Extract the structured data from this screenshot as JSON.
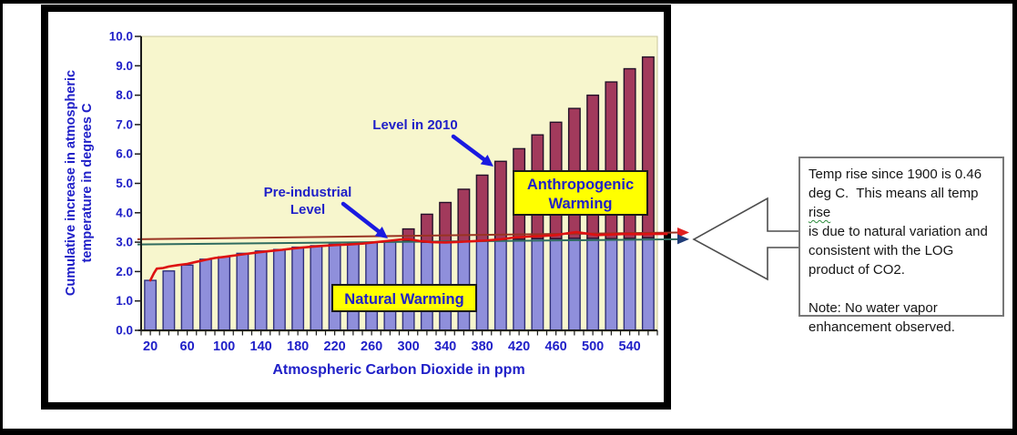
{
  "chart_data": {
    "type": "bar",
    "title": "",
    "xlabel": "Atmospheric Carbon Dioxide in ppm",
    "ylabel_lines": [
      "Cumulative increase in atmospheric",
      "temperature in degrees C"
    ],
    "ylim": [
      0,
      10
    ],
    "ytick_labels": [
      "0.0",
      "1.0",
      "2.0",
      "3.0",
      "4.0",
      "5.0",
      "6.0",
      "7.0",
      "8.0",
      "9.0",
      "10.0"
    ],
    "xtick_labels": [
      "20",
      "60",
      "100",
      "140",
      "180",
      "220",
      "260",
      "300",
      "340",
      "380",
      "420",
      "460",
      "500",
      "540"
    ],
    "categories_ppm": [
      20,
      40,
      60,
      80,
      100,
      120,
      140,
      160,
      180,
      200,
      220,
      240,
      260,
      280,
      300,
      320,
      340,
      360,
      380,
      400,
      420,
      440,
      460,
      480,
      500,
      520,
      540,
      560
    ],
    "grid": false,
    "legend_position": "none",
    "plot_bg": "#F7F6CD",
    "series": [
      {
        "name": "Natural Warming",
        "role": "natural",
        "color": "#8F8FDB",
        "edge": "#30307A",
        "values": [
          1.7,
          2.02,
          2.22,
          2.42,
          2.5,
          2.62,
          2.7,
          2.75,
          2.83,
          2.88,
          2.93,
          2.96,
          2.99,
          3.03,
          3.05,
          3.0,
          3.0,
          3.02,
          3.05,
          3.08,
          3.1,
          3.12,
          3.12,
          3.13,
          3.13,
          3.12,
          3.13,
          3.15
        ]
      },
      {
        "name": "Anthropogenic Warming",
        "role": "total",
        "color": "#A23A5C",
        "edge": "#241028",
        "values": [
          1.7,
          2.02,
          2.22,
          2.42,
          2.5,
          2.62,
          2.7,
          2.75,
          2.83,
          2.88,
          2.93,
          2.96,
          2.99,
          3.03,
          3.45,
          3.95,
          4.35,
          4.8,
          5.28,
          5.75,
          6.18,
          6.65,
          7.08,
          7.55,
          8.0,
          8.45,
          8.9,
          9.3
        ]
      }
    ],
    "red_curve": {
      "name": "observed-temperature-curve",
      "color": "#DD1111",
      "points": [
        [
          20,
          1.7
        ],
        [
          24,
          1.95
        ],
        [
          27,
          2.1
        ],
        [
          34,
          2.12
        ],
        [
          40,
          2.17
        ],
        [
          50,
          2.22
        ],
        [
          60,
          2.26
        ],
        [
          70,
          2.33
        ],
        [
          80,
          2.4
        ],
        [
          90,
          2.46
        ],
        [
          100,
          2.5
        ],
        [
          112,
          2.55
        ],
        [
          124,
          2.6
        ],
        [
          136,
          2.65
        ],
        [
          150,
          2.7
        ],
        [
          163,
          2.74
        ],
        [
          176,
          2.79
        ],
        [
          190,
          2.83
        ],
        [
          205,
          2.87
        ],
        [
          220,
          2.9
        ],
        [
          235,
          2.92
        ],
        [
          250,
          2.95
        ],
        [
          265,
          3.0
        ],
        [
          280,
          3.05
        ],
        [
          292,
          3.09
        ],
        [
          300,
          3.1
        ],
        [
          312,
          3.04
        ],
        [
          325,
          3.0
        ],
        [
          340,
          2.99
        ],
        [
          355,
          3.01
        ],
        [
          370,
          3.03
        ],
        [
          385,
          3.06
        ],
        [
          400,
          3.1
        ],
        [
          415,
          3.16
        ],
        [
          430,
          3.19
        ],
        [
          445,
          3.21
        ],
        [
          460,
          3.24
        ],
        [
          472,
          3.3
        ],
        [
          482,
          3.34
        ],
        [
          492,
          3.3
        ],
        [
          505,
          3.24
        ],
        [
          520,
          3.26
        ],
        [
          535,
          3.28
        ],
        [
          550,
          3.27
        ],
        [
          565,
          3.28
        ],
        [
          580,
          3.28
        ]
      ]
    },
    "ref_lines": [
      {
        "name": "pre-industrial-reference-line",
        "color": "#993322",
        "arrow_color": "#E02020",
        "v_start": 3.1,
        "v_end": 3.33
      },
      {
        "name": "natural-level-reference-line",
        "color": "#2F6B5F",
        "arrow_color": "#1F3C78",
        "v_start": 2.92,
        "v_end": 3.1
      }
    ]
  },
  "annotations": {
    "level_2010_label": "Level in 2010",
    "preindustrial_label_line1": "Pre-industrial",
    "preindustrial_label_line2": "Level",
    "natural_warming_label": "Natural Warming",
    "anthropogenic_warming_line1": "Anthropogenic",
    "anthropogenic_warming_line2": "Warming",
    "text_color": "#2020C8",
    "arrow_color": "#1A1AE0",
    "label_box_bg": "#FFFF00"
  },
  "note_box": {
    "line1": "Temp rise since 1900 is 0.46",
    "line2_pre": "deg C.  This means all temp ",
    "line2_wavy": "rise",
    "line3": "is due to natural variation and",
    "line4": "consistent with the LOG",
    "line5": "product of CO2.",
    "line6": "",
    "line7": "Note: No water vapor",
    "line8": "enhancement observed."
  }
}
